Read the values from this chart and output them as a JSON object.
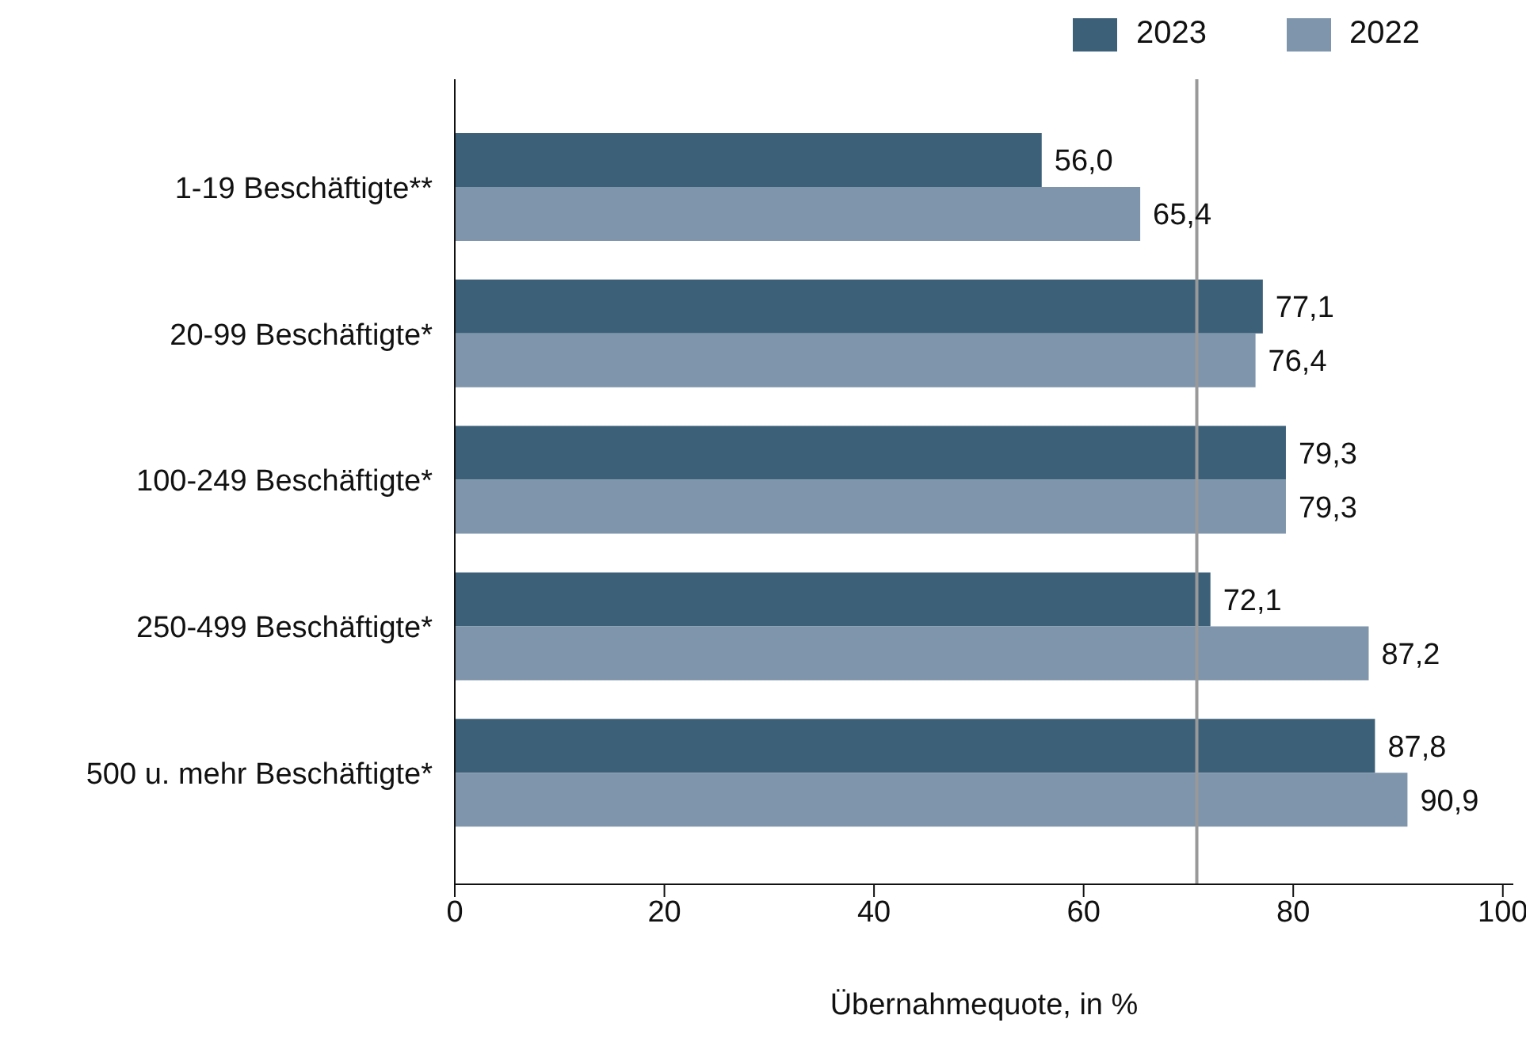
{
  "chart_data": {
    "type": "bar",
    "orientation": "horizontal",
    "xlabel": "Übernahmequote, in %",
    "categories": [
      "1-19 Beschäftigte**",
      "20-99 Beschäftigte*",
      "100-249 Beschäftigte*",
      "250-499 Beschäftigte*",
      "500 u. mehr Beschäftigte*"
    ],
    "series": [
      {
        "name": "2023",
        "color": "#3d6079",
        "values": [
          56.0,
          77.1,
          79.3,
          72.1,
          87.8
        ],
        "value_labels": [
          "56,0",
          "77,1",
          "79,3",
          "72,1",
          "87,8"
        ]
      },
      {
        "name": "2022",
        "color": "#7f95ab",
        "values": [
          65.4,
          76.4,
          79.3,
          87.2,
          90.9
        ],
        "value_labels": [
          "65,4",
          "76,4",
          "79,3",
          "87,2",
          "90,9"
        ]
      }
    ],
    "xlim": [
      0,
      101
    ],
    "xticks": [
      0,
      20,
      40,
      60,
      80,
      100
    ],
    "ref_lines": [
      {
        "axis": "x",
        "value": 70.8,
        "color": "#999999"
      }
    ],
    "legend": "top"
  }
}
